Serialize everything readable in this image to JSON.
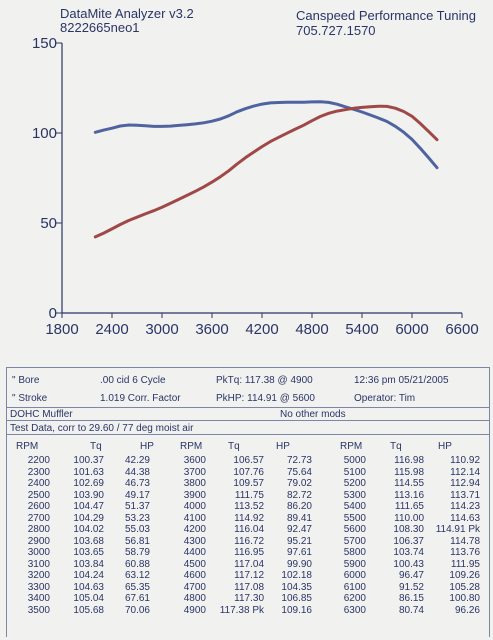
{
  "header": {
    "app": "DataMite Analyzer v3.2",
    "run_id": "8222665neo1",
    "shop": "Canspeed Performance Tuning",
    "phone": "705.727.1570"
  },
  "colors": {
    "torque": "#4f63a0",
    "hp": "#a04848",
    "ink": "#2a3566",
    "paper": "#f1f1ef"
  },
  "chart_data": {
    "type": "line",
    "xlim": [
      1800,
      6600
    ],
    "ylim": [
      0,
      150
    ],
    "xticks": [
      1800,
      2400,
      3000,
      3600,
      4200,
      4800,
      5400,
      6000,
      6600
    ],
    "yticks": [
      0,
      50,
      100,
      150
    ],
    "x": [
      2200,
      2300,
      2400,
      2500,
      2600,
      2700,
      2800,
      2900,
      3000,
      3100,
      3200,
      3300,
      3400,
      3500,
      3600,
      3700,
      3800,
      3900,
      4000,
      4100,
      4200,
      4300,
      4400,
      4500,
      4600,
      4700,
      4800,
      4900,
      5000,
      5100,
      5200,
      5300,
      5400,
      5500,
      5600,
      5700,
      5800,
      5900,
      6000,
      6100,
      6200,
      6300
    ],
    "series": [
      {
        "name": "Tq",
        "values": [
          100.37,
          101.63,
          102.69,
          103.9,
          104.47,
          104.29,
          104.02,
          103.68,
          103.65,
          103.84,
          104.24,
          104.63,
          105.04,
          105.68,
          106.57,
          107.76,
          109.57,
          111.75,
          113.52,
          114.92,
          116.04,
          116.72,
          116.95,
          117.04,
          117.12,
          117.08,
          117.3,
          117.38,
          116.98,
          115.98,
          114.55,
          113.16,
          111.65,
          110.0,
          108.3,
          106.37,
          103.74,
          100.43,
          96.47,
          91.52,
          86.15,
          80.74
        ]
      },
      {
        "name": "HP",
        "values": [
          42.29,
          44.38,
          46.73,
          49.17,
          51.37,
          53.23,
          55.03,
          56.81,
          58.79,
          60.88,
          63.12,
          65.35,
          67.61,
          70.06,
          72.73,
          75.64,
          79.02,
          82.72,
          86.2,
          89.41,
          92.47,
          95.21,
          97.61,
          99.9,
          102.18,
          104.35,
          106.85,
          109.16,
          110.92,
          112.14,
          112.94,
          113.71,
          114.23,
          114.63,
          114.91,
          114.78,
          113.76,
          111.95,
          109.26,
          105.28,
          100.8,
          96.26
        ]
      }
    ]
  },
  "specs": {
    "bore_label": "\" Bore",
    "bore_value": ".00 cid  6 Cycle",
    "pktq": "PkTq: 117.38 @  4900",
    "time": "12:36 pm  05/21/2005",
    "stroke_label": "\" Stroke",
    "stroke_value": "1.019 Corr. Factor",
    "pkhp": "PkHP: 114.91 @  5600",
    "operator": "Operator: Tim",
    "note_left": "DOHC Muffler",
    "note_right": "No other mods",
    "test_line": "Test Data, corr to 29.60 / 77 deg moist air"
  },
  "table": {
    "headers": [
      "RPM",
      "Tq",
      "HP"
    ],
    "blocks": [
      [
        [
          "2200",
          "100.37",
          "42.29"
        ],
        [
          "2300",
          "101.63",
          "44.38"
        ],
        [
          "2400",
          "102.69",
          "46.73"
        ],
        [
          "2500",
          "103.90",
          "49.17"
        ],
        [
          "2600",
          "104.47",
          "51.37"
        ],
        [
          "2700",
          "104.29",
          "53.23"
        ],
        [
          "2800",
          "104.02",
          "55.03"
        ],
        [
          "2900",
          "103.68",
          "56.81"
        ],
        [
          "3000",
          "103.65",
          "58.79"
        ],
        [
          "3100",
          "103.84",
          "60.88"
        ],
        [
          "3200",
          "104.24",
          "63.12"
        ],
        [
          "3300",
          "104.63",
          "65.35"
        ],
        [
          "3400",
          "105.04",
          "67.61"
        ],
        [
          "3500",
          "105.68",
          "70.06"
        ]
      ],
      [
        [
          "3600",
          "106.57",
          "72.73"
        ],
        [
          "3700",
          "107.76",
          "75.64"
        ],
        [
          "3800",
          "109.57",
          "79.02"
        ],
        [
          "3900",
          "111.75",
          "82.72"
        ],
        [
          "4000",
          "113.52",
          "86.20"
        ],
        [
          "4100",
          "114.92",
          "89.41"
        ],
        [
          "4200",
          "116.04",
          "92.47"
        ],
        [
          "4300",
          "116.72",
          "95.21"
        ],
        [
          "4400",
          "116.95",
          "97.61"
        ],
        [
          "4500",
          "117.04",
          "99.90"
        ],
        [
          "4600",
          "117.12",
          "102.18"
        ],
        [
          "4700",
          "117.08",
          "104.35"
        ],
        [
          "4800",
          "117.30",
          "106.85"
        ],
        [
          "4900",
          "117.38 Pk",
          "109.16"
        ]
      ],
      [
        [
          "5000",
          "116.98",
          "110.92"
        ],
        [
          "5100",
          "115.98",
          "112.14"
        ],
        [
          "5200",
          "114.55",
          "112.94"
        ],
        [
          "5300",
          "113.16",
          "113.71"
        ],
        [
          "5400",
          "111.65",
          "114.23"
        ],
        [
          "5500",
          "110.00",
          "114.63"
        ],
        [
          "5600",
          "108.30",
          "114.91 Pk"
        ],
        [
          "5700",
          "106.37",
          "114.78"
        ],
        [
          "5800",
          "103.74",
          "113.76"
        ],
        [
          "5900",
          "100.43",
          "111.95"
        ],
        [
          "6000",
          "96.47",
          "109.26"
        ],
        [
          "6100",
          "91.52",
          "105.28"
        ],
        [
          "6200",
          "86.15",
          "100.80"
        ],
        [
          "6300",
          "80.74",
          "96.26"
        ]
      ]
    ]
  }
}
